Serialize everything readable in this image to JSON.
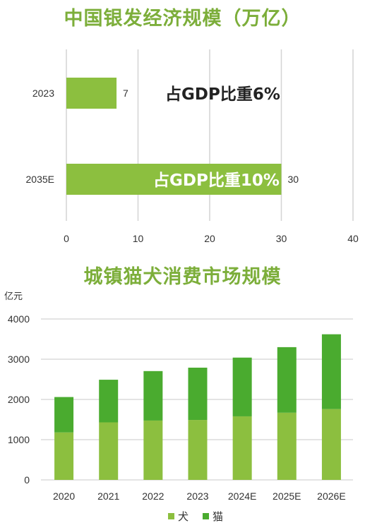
{
  "chart_data": [
    {
      "type": "bar",
      "orientation": "horizontal",
      "title": "中国银发经济规模（万亿）",
      "categories": [
        "2023",
        "2035E"
      ],
      "values": [
        7,
        30
      ],
      "data_labels": [
        "7",
        "30"
      ],
      "xlim": [
        0,
        40
      ],
      "xticks": [
        "0",
        "10",
        "20",
        "30",
        "40"
      ],
      "annotations": [
        "占GDP比重6%",
        "占GDP比重10%"
      ],
      "grid": "vertical",
      "colors": {
        "bar": "#8cbf3f"
      }
    },
    {
      "type": "bar",
      "stacked": true,
      "title": "城镇猫犬消费市场规模",
      "unit": "亿元",
      "categories": [
        "2020",
        "2021",
        "2022",
        "2023",
        "2024E",
        "2025E",
        "2026E"
      ],
      "series": [
        {
          "name": "犬",
          "values": [
            1180,
            1430,
            1475,
            1490,
            1580,
            1670,
            1760
          ],
          "color": "#8cbf3f"
        },
        {
          "name": "猫",
          "values": [
            880,
            1060,
            1230,
            1300,
            1460,
            1630,
            1860
          ],
          "color": "#4aab2f"
        }
      ],
      "ylim": [
        0,
        4000
      ],
      "yticks": [
        "0",
        "1000",
        "2000",
        "3000",
        "4000"
      ],
      "legend": "bottom",
      "grid": "horizontal"
    }
  ]
}
